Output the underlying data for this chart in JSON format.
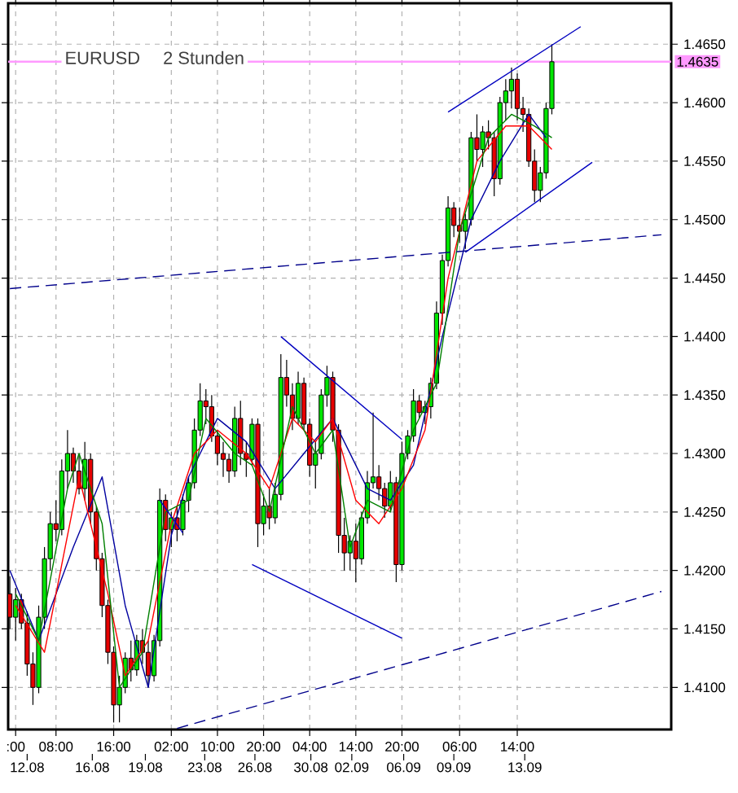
{
  "chart_data": {
    "type": "candlestick",
    "title": "EURUSD",
    "subtitle": "2 Stunden",
    "categories": [
      null,
      ":00",
      null,
      null,
      null,
      null,
      null,
      null,
      "08:00",
      null,
      null,
      null,
      null,
      null,
      null,
      null,
      null,
      null,
      "16:00",
      null,
      null,
      null,
      null,
      null,
      null,
      null,
      null,
      null,
      "02:00",
      null,
      null,
      null,
      null,
      null,
      null,
      null,
      "10:00",
      null,
      null,
      null,
      null,
      null,
      null,
      null,
      "20:00",
      null,
      null,
      null,
      null,
      null,
      null,
      null,
      "04:00",
      null,
      null,
      null,
      null,
      null,
      null,
      null,
      "14:00",
      null,
      null,
      null,
      null,
      null,
      null,
      null,
      "20:00",
      null,
      null,
      null,
      null,
      null,
      null,
      null,
      null,
      null,
      "06:00",
      null,
      null,
      null,
      null,
      null,
      null,
      null,
      null,
      null,
      "14:00",
      null,
      null,
      null,
      null,
      null,
      null,
      null,
      null,
      null,
      null,
      null,
      null,
      null,
      null,
      null,
      null,
      null,
      null,
      null,
      null,
      null,
      null,
      null,
      null,
      null,
      null
    ],
    "ohlc": [
      [
        1.418,
        1.4195,
        1.415,
        1.416
      ],
      [
        1.416,
        1.4185,
        1.414,
        1.4175
      ],
      [
        1.4175,
        1.418,
        1.415,
        1.4155
      ],
      [
        1.4155,
        1.4165,
        1.411,
        1.412
      ],
      [
        1.412,
        1.413,
        1.4085,
        1.41
      ],
      [
        1.41,
        1.417,
        1.4095,
        1.416
      ],
      [
        1.416,
        1.422,
        1.415,
        1.421
      ],
      [
        1.421,
        1.425,
        1.42,
        1.424
      ],
      [
        1.424,
        1.426,
        1.4225,
        1.4235
      ],
      [
        1.4235,
        1.4295,
        1.423,
        1.4285
      ],
      [
        1.4285,
        1.432,
        1.427,
        1.43
      ],
      [
        1.43,
        1.4305,
        1.4275,
        1.4285
      ],
      [
        1.4285,
        1.43,
        1.4265,
        1.427
      ],
      [
        1.427,
        1.431,
        1.426,
        1.4295
      ],
      [
        1.4295,
        1.43,
        1.424,
        1.425
      ],
      [
        1.425,
        1.4255,
        1.42,
        1.421
      ],
      [
        1.421,
        1.4215,
        1.416,
        1.417
      ],
      [
        1.417,
        1.4175,
        1.412,
        1.413
      ],
      [
        1.413,
        1.4135,
        1.407,
        1.4085
      ],
      [
        1.4085,
        1.411,
        1.407,
        1.41
      ],
      [
        1.41,
        1.413,
        1.4095,
        1.4125
      ],
      [
        1.4125,
        1.414,
        1.4105,
        1.4115
      ],
      [
        1.4115,
        1.4145,
        1.411,
        1.414
      ],
      [
        1.414,
        1.415,
        1.412,
        1.413
      ],
      [
        1.413,
        1.414,
        1.41,
        1.411
      ],
      [
        1.411,
        1.4145,
        1.4105,
        1.414
      ],
      [
        1.414,
        1.427,
        1.4135,
        1.426
      ],
      [
        1.426,
        1.4265,
        1.4225,
        1.4235
      ],
      [
        1.4235,
        1.425,
        1.422,
        1.4245
      ],
      [
        1.4245,
        1.4255,
        1.4225,
        1.4235
      ],
      [
        1.4235,
        1.4265,
        1.423,
        1.426
      ],
      [
        1.426,
        1.428,
        1.425,
        1.4275
      ],
      [
        1.4275,
        1.433,
        1.427,
        1.432
      ],
      [
        1.432,
        1.436,
        1.4315,
        1.4345
      ],
      [
        1.4345,
        1.4355,
        1.4325,
        1.434
      ],
      [
        1.434,
        1.435,
        1.431,
        1.4315
      ],
      [
        1.4315,
        1.432,
        1.429,
        1.43
      ],
      [
        1.43,
        1.431,
        1.428,
        1.4295
      ],
      [
        1.4295,
        1.43,
        1.4275,
        1.4285
      ],
      [
        1.4285,
        1.434,
        1.428,
        1.433
      ],
      [
        1.433,
        1.4345,
        1.429,
        1.43
      ],
      [
        1.43,
        1.431,
        1.428,
        1.4295
      ],
      [
        1.4295,
        1.433,
        1.429,
        1.4325
      ],
      [
        1.4325,
        1.433,
        1.422,
        1.424
      ],
      [
        1.424,
        1.4265,
        1.423,
        1.4255
      ],
      [
        1.4255,
        1.427,
        1.4235,
        1.4245
      ],
      [
        1.4245,
        1.4275,
        1.424,
        1.4265
      ],
      [
        1.4265,
        1.4385,
        1.426,
        1.4365
      ],
      [
        1.4365,
        1.438,
        1.434,
        1.435
      ],
      [
        1.435,
        1.436,
        1.432,
        1.433
      ],
      [
        1.433,
        1.437,
        1.4325,
        1.436
      ],
      [
        1.436,
        1.4365,
        1.432,
        1.4325
      ],
      [
        1.4325,
        1.433,
        1.428,
        1.429
      ],
      [
        1.429,
        1.431,
        1.427,
        1.43
      ],
      [
        1.43,
        1.4355,
        1.4295,
        1.435
      ],
      [
        1.435,
        1.4375,
        1.434,
        1.4365
      ],
      [
        1.4365,
        1.437,
        1.431,
        1.432
      ],
      [
        1.432,
        1.4325,
        1.4215,
        1.423
      ],
      [
        1.423,
        1.4245,
        1.42,
        1.4215
      ],
      [
        1.4215,
        1.423,
        1.42,
        1.4225
      ],
      [
        1.4225,
        1.424,
        1.419,
        1.421
      ],
      [
        1.421,
        1.425,
        1.4205,
        1.4245
      ],
      [
        1.4245,
        1.4285,
        1.424,
        1.4275
      ],
      [
        1.4275,
        1.4335,
        1.427,
        1.428
      ],
      [
        1.428,
        1.429,
        1.426,
        1.427
      ],
      [
        1.427,
        1.4275,
        1.4245,
        1.4255
      ],
      [
        1.4255,
        1.4285,
        1.425,
        1.4275
      ],
      [
        1.4275,
        1.428,
        1.419,
        1.4205
      ],
      [
        1.4205,
        1.431,
        1.42,
        1.43
      ],
      [
        1.43,
        1.432,
        1.4295,
        1.4315
      ],
      [
        1.4315,
        1.4355,
        1.431,
        1.4345
      ],
      [
        1.4345,
        1.435,
        1.433,
        1.4335
      ],
      [
        1.4335,
        1.4345,
        1.4325,
        1.434
      ],
      [
        1.434,
        1.4365,
        1.433,
        1.436
      ],
      [
        1.436,
        1.443,
        1.4355,
        1.442
      ],
      [
        1.442,
        1.447,
        1.441,
        1.4465
      ],
      [
        1.4465,
        1.452,
        1.446,
        1.451
      ],
      [
        1.451,
        1.4515,
        1.4485,
        1.4495
      ],
      [
        1.4495,
        1.451,
        1.448,
        1.449
      ],
      [
        1.449,
        1.4505,
        1.4475,
        1.45
      ],
      [
        1.45,
        1.4575,
        1.4495,
        1.457
      ],
      [
        1.457,
        1.459,
        1.455,
        1.456
      ],
      [
        1.456,
        1.458,
        1.4545,
        1.4575
      ],
      [
        1.4575,
        1.4585,
        1.456,
        1.457
      ],
      [
        1.457,
        1.4575,
        1.452,
        1.4535
      ],
      [
        1.4535,
        1.4605,
        1.453,
        1.46
      ],
      [
        1.46,
        1.462,
        1.4585,
        1.461
      ],
      [
        1.461,
        1.463,
        1.4595,
        1.462
      ],
      [
        1.462,
        1.4625,
        1.4585,
        1.4595
      ],
      [
        1.4595,
        1.4605,
        1.4575,
        1.459
      ],
      [
        1.459,
        1.4595,
        1.4545,
        1.455
      ],
      [
        1.455,
        1.456,
        1.4515,
        1.4525
      ],
      [
        1.4525,
        1.4545,
        1.4515,
        1.454
      ],
      [
        1.454,
        1.46,
        1.4535,
        1.4595
      ],
      [
        1.4595,
        1.465,
        1.459,
        1.4635
      ],
      null,
      null,
      null,
      null,
      null,
      null,
      null,
      null,
      null,
      null,
      null,
      null,
      null,
      null,
      null,
      null,
      null,
      null,
      null,
      null
    ],
    "series": [
      {
        "type": "line",
        "color": "#0000a0",
        "values": [
          1.42,
          null,
          null,
          null,
          null,
          1.414,
          null,
          null,
          null,
          null,
          null,
          1.422,
          null,
          null,
          null,
          null,
          1.428,
          null,
          null,
          null,
          1.417,
          null,
          null,
          null,
          1.41,
          null,
          null,
          null,
          1.423,
          null,
          null,
          1.428,
          null,
          null,
          null,
          null,
          1.433,
          null,
          null,
          null,
          null,
          1.431,
          null,
          null,
          null,
          null,
          1.427,
          null,
          null,
          null,
          null,
          1.43,
          null,
          null,
          null,
          null,
          1.433,
          null,
          null,
          null,
          null,
          null,
          1.427,
          null,
          null,
          null,
          1.426,
          null,
          null,
          null,
          1.429,
          null,
          null,
          null,
          null,
          1.44,
          null,
          null,
          null,
          null,
          1.45,
          null,
          null,
          null,
          null,
          1.455,
          null,
          null,
          null,
          null,
          1.459,
          null,
          null,
          1.457,
          null,
          null,
          null,
          null,
          null,
          null,
          null,
          null,
          null,
          null,
          null,
          null,
          null,
          null,
          null,
          null,
          null,
          null,
          null,
          null,
          null
        ]
      },
      {
        "type": "line",
        "color": "#ff0000",
        "values": [
          null,
          1.417,
          null,
          null,
          null,
          null,
          1.413,
          null,
          null,
          null,
          null,
          null,
          1.428,
          null,
          null,
          null,
          null,
          1.418,
          null,
          null,
          1.411,
          null,
          null,
          null,
          1.414,
          null,
          null,
          null,
          1.424,
          null,
          null,
          null,
          1.43,
          null,
          null,
          null,
          1.432,
          null,
          null,
          null,
          null,
          1.43,
          null,
          null,
          null,
          1.427,
          null,
          null,
          null,
          1.433,
          null,
          null,
          null,
          1.431,
          null,
          null,
          1.433,
          null,
          null,
          null,
          1.426,
          null,
          null,
          null,
          1.424,
          null,
          null,
          null,
          1.427,
          null,
          null,
          null,
          1.432,
          null,
          null,
          null,
          1.445,
          null,
          null,
          null,
          null,
          1.455,
          null,
          null,
          null,
          null,
          1.458,
          null,
          null,
          null,
          1.458,
          null,
          null,
          null,
          1.456,
          null,
          null,
          null,
          null,
          null,
          null,
          null,
          null,
          null,
          null,
          null,
          null,
          null,
          null,
          null,
          null,
          null,
          null,
          null,
          null
        ]
      },
      {
        "type": "line",
        "color": "#008000",
        "values": [
          null,
          1.418,
          null,
          null,
          null,
          1.414,
          null,
          null,
          null,
          null,
          1.427,
          null,
          1.43,
          null,
          null,
          null,
          1.424,
          null,
          null,
          1.41,
          null,
          null,
          null,
          1.413,
          null,
          null,
          null,
          1.425,
          null,
          null,
          null,
          1.426,
          null,
          null,
          1.433,
          null,
          null,
          null,
          null,
          1.43,
          null,
          null,
          1.429,
          null,
          null,
          1.425,
          null,
          null,
          null,
          1.434,
          null,
          null,
          null,
          1.43,
          null,
          null,
          1.432,
          null,
          null,
          1.422,
          null,
          null,
          1.426,
          null,
          null,
          null,
          1.425,
          null,
          null,
          null,
          1.432,
          null,
          null,
          null,
          1.436,
          null,
          null,
          null,
          1.449,
          null,
          null,
          null,
          null,
          1.457,
          null,
          null,
          null,
          1.459,
          null,
          null,
          null,
          1.458,
          null,
          null,
          1.457,
          null,
          null,
          null,
          null,
          null,
          null,
          null,
          null,
          null,
          null,
          null,
          null,
          null,
          null,
          null,
          null,
          null,
          null,
          null,
          null
        ]
      },
      {
        "type": "line",
        "color": "#0000c0",
        "values": [
          null,
          null,
          null,
          null,
          null,
          null,
          null,
          null,
          null,
          null,
          null,
          null,
          null,
          null,
          null,
          null,
          null,
          null,
          null,
          null,
          null,
          null,
          null,
          null,
          null,
          null,
          null,
          null,
          null,
          null,
          null,
          null,
          null,
          null,
          null,
          null,
          null,
          null,
          null,
          null,
          null,
          null,
          null,
          null,
          null,
          null,
          null,
          null,
          null,
          null,
          null,
          null,
          null,
          null,
          null,
          null,
          null,
          null,
          null,
          null,
          null,
          null,
          null,
          null,
          null,
          null,
          null,
          null,
          null,
          null,
          null,
          null,
          null,
          null,
          null,
          null,
          1.4592,
          null,
          null,
          null,
          null,
          null,
          null,
          null,
          null,
          null,
          null,
          null,
          null,
          null,
          null,
          null,
          null,
          null,
          null,
          null,
          null,
          null,
          null,
          1.4665,
          null,
          null,
          null,
          null,
          null,
          null,
          null,
          null,
          null,
          null,
          null,
          null,
          null,
          null,
          null
        ]
      },
      {
        "type": "line",
        "color": "#0000c0",
        "values": [
          null,
          null,
          null,
          null,
          null,
          null,
          null,
          null,
          null,
          null,
          null,
          null,
          null,
          null,
          null,
          null,
          null,
          null,
          null,
          null,
          null,
          null,
          null,
          null,
          null,
          null,
          null,
          null,
          null,
          null,
          null,
          null,
          null,
          null,
          null,
          null,
          null,
          null,
          null,
          null,
          null,
          null,
          null,
          null,
          null,
          null,
          null,
          null,
          null,
          null,
          null,
          null,
          null,
          null,
          null,
          null,
          null,
          null,
          null,
          null,
          null,
          null,
          null,
          null,
          null,
          null,
          null,
          null,
          null,
          null,
          null,
          null,
          null,
          null,
          null,
          null,
          null,
          null,
          null,
          1.4472,
          null,
          null,
          null,
          null,
          null,
          null,
          null,
          null,
          null,
          null,
          null,
          null,
          null,
          null,
          null,
          null,
          null,
          null,
          null,
          null,
          null,
          1.4549,
          null,
          null,
          null,
          null,
          null,
          null,
          null,
          null,
          null,
          null,
          null,
          null,
          null
        ]
      },
      {
        "type": "line",
        "color": "#0000c0",
        "values": [
          null,
          null,
          null,
          null,
          null,
          null,
          null,
          null,
          null,
          null,
          null,
          null,
          null,
          null,
          null,
          null,
          null,
          null,
          null,
          null,
          null,
          null,
          null,
          null,
          null,
          null,
          null,
          null,
          null,
          null,
          null,
          null,
          null,
          null,
          null,
          null,
          null,
          null,
          null,
          null,
          null,
          null,
          null,
          null,
          null,
          null,
          null,
          1.44,
          null,
          null,
          null,
          null,
          null,
          null,
          null,
          null,
          null,
          null,
          null,
          null,
          null,
          null,
          null,
          null,
          null,
          null,
          null,
          null,
          1.4312,
          null,
          null,
          null,
          null,
          null,
          null,
          null,
          null,
          null,
          null,
          null,
          null,
          null,
          null,
          null,
          null,
          null,
          null,
          null,
          null,
          null,
          null,
          null,
          null,
          null,
          null,
          null,
          null,
          null,
          null,
          null,
          null,
          null,
          null,
          null,
          null,
          null,
          null,
          null,
          null,
          null,
          null,
          null,
          null,
          null,
          null
        ]
      },
      {
        "type": "line",
        "color": "#0000c0",
        "values": [
          null,
          null,
          null,
          null,
          null,
          null,
          null,
          null,
          null,
          null,
          null,
          null,
          null,
          null,
          null,
          null,
          null,
          null,
          null,
          null,
          null,
          null,
          null,
          null,
          null,
          null,
          1.426,
          null,
          null,
          null,
          1.4232,
          null,
          null,
          null,
          null,
          null,
          null,
          null,
          null,
          null,
          null,
          null,
          null,
          null,
          null,
          null,
          null,
          null,
          null,
          null,
          null,
          null,
          null,
          null,
          null,
          null,
          null,
          null,
          null,
          null,
          null,
          null,
          null,
          null,
          null,
          null,
          null,
          null,
          null,
          null,
          null,
          null,
          null,
          null,
          null,
          null,
          null,
          null,
          null,
          null,
          null,
          null,
          null,
          null,
          null,
          null,
          null,
          null,
          null,
          null,
          null,
          null,
          null,
          null,
          null,
          null,
          null,
          null,
          null,
          null,
          null,
          null,
          null,
          null,
          null,
          null,
          null,
          null,
          null,
          null,
          null,
          null,
          null,
          null,
          null
        ]
      },
      {
        "type": "line",
        "color": "#0000c0",
        "values": [
          null,
          null,
          null,
          null,
          null,
          null,
          null,
          null,
          null,
          null,
          null,
          null,
          null,
          null,
          null,
          null,
          null,
          null,
          null,
          null,
          null,
          null,
          null,
          null,
          null,
          null,
          null,
          null,
          null,
          null,
          null,
          null,
          null,
          null,
          null,
          null,
          null,
          null,
          null,
          null,
          null,
          null,
          1.4205,
          null,
          null,
          null,
          null,
          null,
          null,
          null,
          null,
          null,
          null,
          null,
          null,
          null,
          null,
          null,
          null,
          null,
          null,
          null,
          null,
          null,
          null,
          null,
          null,
          null,
          1.4142,
          null,
          null,
          null,
          null,
          null,
          null,
          null,
          null,
          null,
          null,
          null,
          null,
          null,
          null,
          null,
          null,
          null,
          null,
          null,
          null,
          null,
          null,
          null,
          null,
          null,
          null,
          null,
          null,
          null,
          null,
          null,
          null,
          null,
          null,
          null,
          null,
          null,
          null,
          null,
          null,
          null,
          null,
          null,
          null,
          null,
          null
        ]
      },
      {
        "type": "line",
        "color": "#00008b",
        "line_style": "dashed",
        "values": [
          1.4441,
          null,
          null,
          null,
          null,
          null,
          null,
          null,
          null,
          null,
          null,
          null,
          null,
          null,
          null,
          null,
          null,
          null,
          null,
          null,
          null,
          null,
          null,
          null,
          null,
          null,
          null,
          null,
          null,
          null,
          null,
          null,
          null,
          null,
          null,
          null,
          null,
          null,
          null,
          null,
          null,
          null,
          null,
          null,
          null,
          null,
          null,
          null,
          null,
          null,
          null,
          null,
          null,
          null,
          null,
          null,
          null,
          null,
          null,
          null,
          null,
          null,
          null,
          null,
          null,
          null,
          null,
          null,
          null,
          null,
          null,
          null,
          null,
          null,
          null,
          null,
          null,
          null,
          null,
          null,
          null,
          null,
          null,
          null,
          null,
          null,
          null,
          null,
          null,
          null,
          null,
          null,
          null,
          null,
          null,
          null,
          null,
          null,
          null,
          null,
          null,
          null,
          null,
          null,
          null,
          null,
          null,
          null,
          null,
          null,
          null,
          null,
          null,
          1.4487,
          null
        ]
      },
      {
        "type": "line",
        "color": "#00008b",
        "line_style": "dashed",
        "values": [
          null,
          null,
          null,
          null,
          null,
          null,
          null,
          null,
          null,
          null,
          null,
          null,
          null,
          null,
          null,
          null,
          null,
          null,
          null,
          null,
          null,
          null,
          null,
          null,
          null,
          null,
          null,
          null,
          null,
          1.4065,
          null,
          null,
          null,
          null,
          null,
          null,
          null,
          null,
          null,
          null,
          null,
          null,
          null,
          null,
          null,
          null,
          null,
          null,
          null,
          null,
          null,
          null,
          null,
          null,
          null,
          null,
          null,
          null,
          null,
          null,
          null,
          null,
          null,
          null,
          null,
          null,
          null,
          null,
          null,
          null,
          null,
          null,
          null,
          null,
          null,
          null,
          null,
          null,
          null,
          null,
          null,
          null,
          null,
          null,
          null,
          null,
          null,
          null,
          null,
          null,
          null,
          null,
          null,
          null,
          null,
          null,
          null,
          null,
          null,
          null,
          null,
          null,
          null,
          null,
          null,
          null,
          null,
          null,
          null,
          null,
          null,
          null,
          null,
          1.4182,
          null
        ]
      }
    ],
    "ylim": [
      1.4064,
      1.4685
    ],
    "yticks": [
      {
        "value": 1.41,
        "label": "1.4100"
      },
      {
        "value": 1.415,
        "label": "1.4150"
      },
      {
        "value": 1.42,
        "label": "1.4200"
      },
      {
        "value": 1.425,
        "label": "1.4250"
      },
      {
        "value": 1.43,
        "label": "1.4300"
      },
      {
        "value": 1.435,
        "label": "1.4350"
      },
      {
        "value": 1.44,
        "label": "1.4400"
      },
      {
        "value": 1.445,
        "label": "1.4450"
      },
      {
        "value": 1.45,
        "label": "1.4500"
      },
      {
        "value": 1.455,
        "label": "1.4550"
      },
      {
        "value": 1.46,
        "label": "1.4600"
      },
      {
        "value": 1.465,
        "label": "1.4650"
      }
    ],
    "annotations": [
      "12.08",
      "16.08",
      "19.08",
      "23.08",
      "26.08",
      "30.08",
      "02.09",
      "06.09",
      "09.09",
      "13.09"
    ],
    "ref_lines": [
      {
        "axis": "y",
        "value": 1.4635,
        "label": "1.4635",
        "color": "#ff99ff"
      }
    ],
    "grid": true,
    "marker": "none"
  }
}
